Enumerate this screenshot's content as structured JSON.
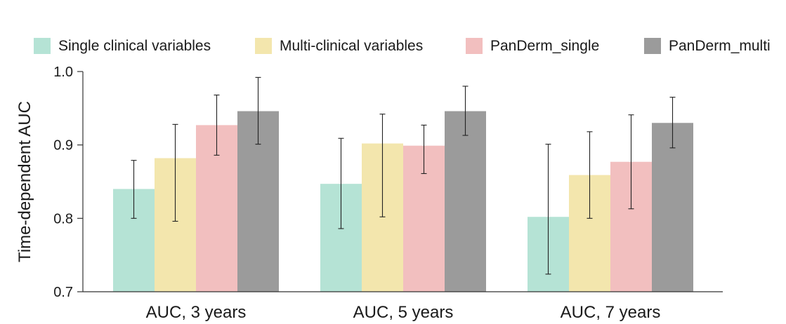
{
  "chart_data": {
    "type": "bar",
    "title": "",
    "xlabel": "",
    "ylabel": "Time-dependent AUC",
    "ylim": [
      0.7,
      1.0
    ],
    "yticks": [
      "0.7",
      "0.8",
      "0.9",
      "1.0"
    ],
    "categories": [
      "AUC, 3 years",
      "AUC, 5 years",
      "AUC, 7 years"
    ],
    "series": [
      {
        "name": "Single clinical variables",
        "color": "#b5e3d5",
        "values": [
          0.84,
          0.847,
          0.802
        ],
        "err_low": [
          0.8,
          0.786,
          0.724
        ],
        "err_high": [
          0.879,
          0.909,
          0.901
        ]
      },
      {
        "name": "Multi-clinical variables",
        "color": "#f3e6ad",
        "values": [
          0.882,
          0.902,
          0.859
        ],
        "err_low": [
          0.796,
          0.802,
          0.8
        ],
        "err_high": [
          0.928,
          0.942,
          0.918
        ]
      },
      {
        "name": "PanDerm_single",
        "color": "#f2bfbf",
        "values": [
          0.927,
          0.899,
          0.877
        ],
        "err_low": [
          0.886,
          0.861,
          0.813
        ],
        "err_high": [
          0.968,
          0.927,
          0.941
        ]
      },
      {
        "name": "PanDerm_multi",
        "color": "#9b9b9b",
        "values": [
          0.946,
          0.946,
          0.93
        ],
        "err_low": [
          0.901,
          0.913,
          0.896
        ],
        "err_high": [
          0.992,
          0.98,
          0.965
        ]
      }
    ],
    "legend_position": "top",
    "grid": false
  }
}
